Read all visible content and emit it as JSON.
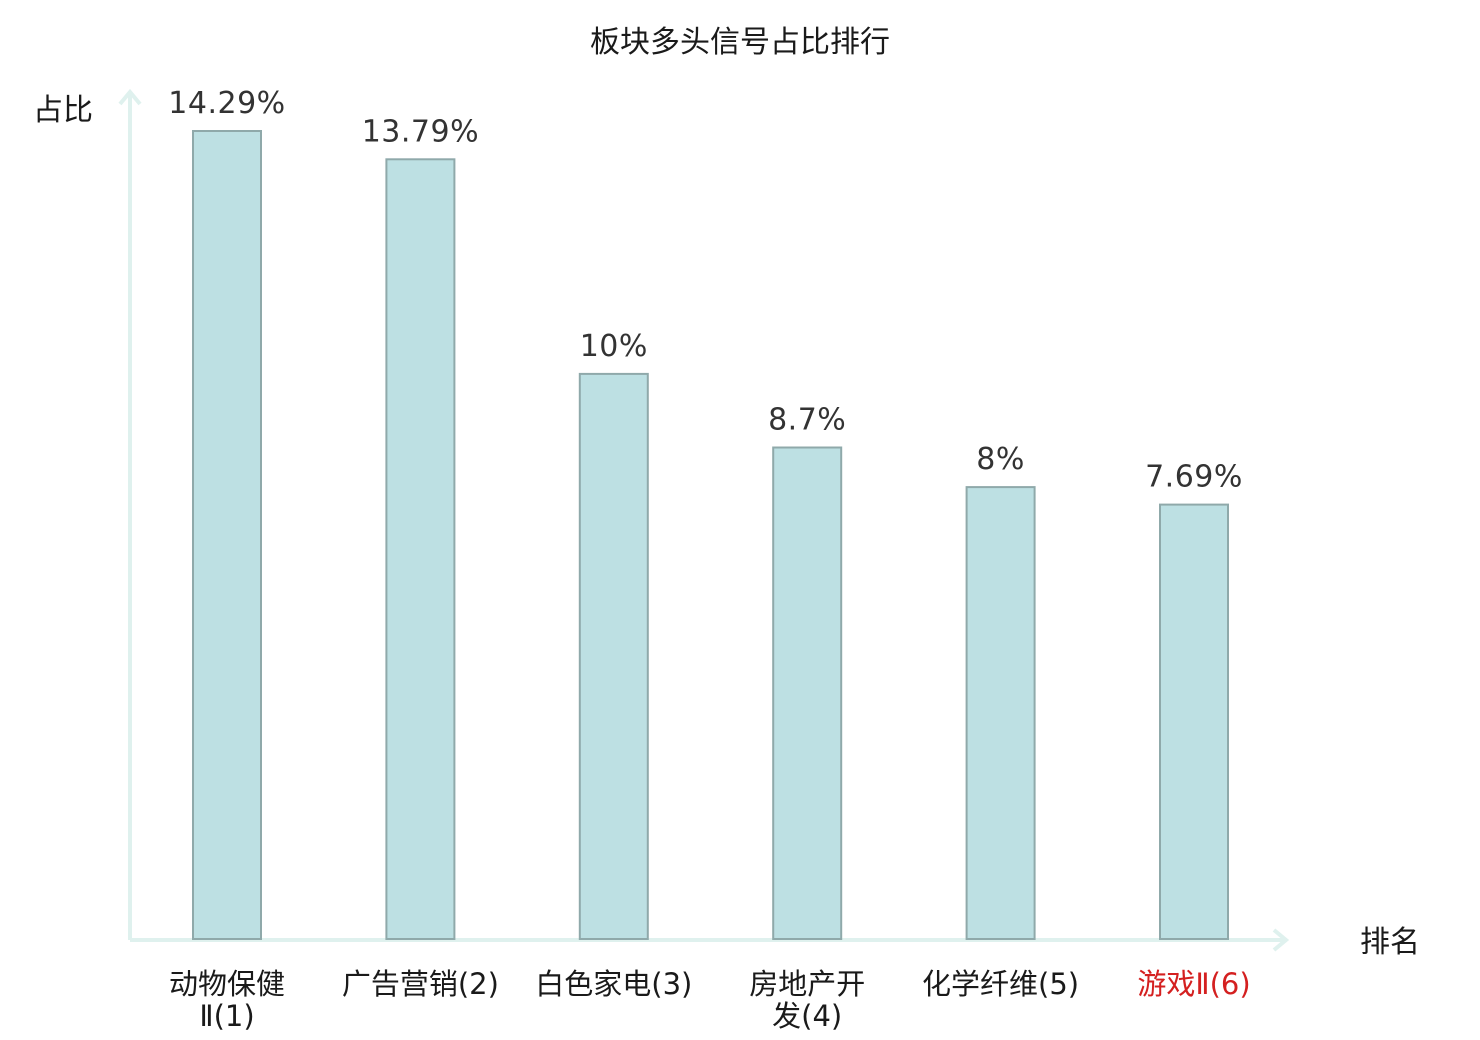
{
  "chart_data": {
    "type": "bar",
    "title": "板块多头信号占比排行",
    "xlabel": "排名",
    "ylabel": "占比",
    "ylim": [
      0,
      14.29
    ],
    "grid": false,
    "categories": [
      {
        "name": "动物保健Ⅱ",
        "rank": "(1)",
        "lines": [
          "动物保健",
          "Ⅱ(1)"
        ],
        "highlight": false
      },
      {
        "name": "广告营销",
        "rank": "(2)",
        "lines": [
          "广告营销(2)"
        ],
        "highlight": false
      },
      {
        "name": "白色家电",
        "rank": "(3)",
        "lines": [
          "白色家电(3)"
        ],
        "highlight": false
      },
      {
        "name": "房地产开发",
        "rank": "(4)",
        "lines": [
          "房地产开",
          "发(4)"
        ],
        "highlight": false
      },
      {
        "name": "化学纤维",
        "rank": "(5)",
        "lines": [
          "化学纤维(5)"
        ],
        "highlight": false
      },
      {
        "name": "游戏Ⅱ",
        "rank": "(6)",
        "lines": [
          "游戏Ⅱ(6)"
        ],
        "highlight": true
      }
    ],
    "values": [
      14.29,
      13.79,
      10,
      8.7,
      8,
      7.69
    ],
    "value_labels": [
      "14.29%",
      "13.79%",
      "10%",
      "8.7%",
      "8%",
      "7.69%"
    ]
  },
  "colors": {
    "bar_fill": "#bde0e3",
    "bar_stroke": "#8fa9aa",
    "axis": "#dff1ee",
    "text": "#1a1a1a",
    "highlight": "#d42020"
  }
}
